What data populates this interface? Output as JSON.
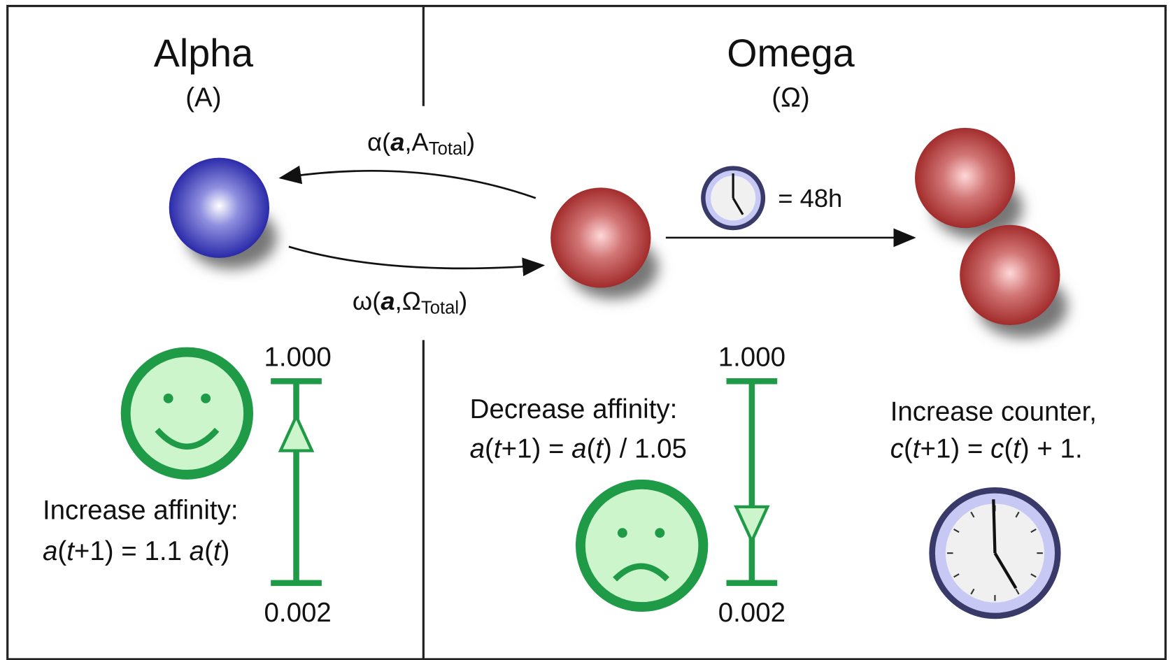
{
  "panels": [
    {
      "title": "Alpha",
      "symbol": "(A)"
    },
    {
      "title": "Omega",
      "symbol": "(Ω)"
    }
  ],
  "transitions": [
    {
      "label_parts": [
        "α(",
        "a",
        ",A",
        "Total",
        ")"
      ]
    },
    {
      "label_parts": [
        "ω(",
        "a",
        ",Ω",
        "Total",
        ")"
      ]
    }
  ],
  "division": {
    "duration": "= 48h"
  },
  "scales": [
    {
      "max": "1.000",
      "min": "0.002",
      "heading": "Increase affinity:",
      "rule_parts": [
        "a",
        "(",
        "t",
        "+1) = 1.1 ",
        "a",
        "(",
        "t",
        ")"
      ]
    },
    {
      "max": "1.000",
      "min": "0.002",
      "heading": "Decrease affinity:",
      "rule_parts": [
        "a",
        "(",
        "t",
        "+1) = ",
        "a",
        "(",
        "t",
        ") / 1.05"
      ]
    }
  ],
  "counter": {
    "heading": "Increase counter,",
    "rule_parts": [
      "c",
      "(",
      "t",
      "+1) = ",
      "c",
      "(",
      "t",
      ") + 1."
    ]
  }
}
